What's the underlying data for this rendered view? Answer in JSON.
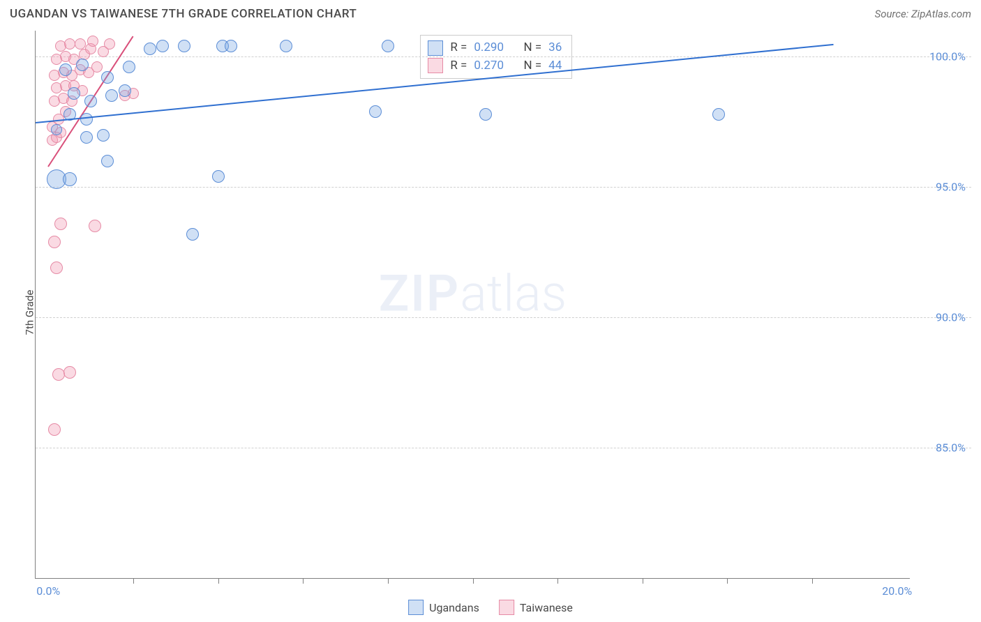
{
  "header": {
    "title": "UGANDAN VS TAIWANESE 7TH GRADE CORRELATION CHART",
    "source": "Source: ZipAtlas.com"
  },
  "axes": {
    "y_label": "7th Grade",
    "y_ticks": [
      {
        "value": 100.0,
        "label": "100.0%"
      },
      {
        "value": 95.0,
        "label": "95.0%"
      },
      {
        "value": 90.0,
        "label": "90.0%"
      },
      {
        "value": 85.0,
        "label": "85.0%"
      }
    ],
    "y_min": 80.0,
    "y_max": 101.0,
    "x_ticks_minor": [
      2,
      4,
      6,
      8,
      10,
      12,
      14,
      16,
      18
    ],
    "x_labels": [
      {
        "value": 0.0,
        "label": "0.0%"
      },
      {
        "value": 20.0,
        "label": "20.0%"
      }
    ],
    "x_min": -0.3,
    "x_max": 20.3,
    "tick_label_color": "#5b8dd6",
    "grid_color": "#d0d0d0",
    "axis_color": "#808080"
  },
  "series": {
    "ugandans": {
      "label": "Ugandans",
      "fill": "rgba(120,165,225,0.35)",
      "stroke": "#5b8dd6",
      "trend_color": "#2f6fd0",
      "trend": {
        "x1": -0.3,
        "y1": 97.5,
        "x2": 18.5,
        "y2": 100.5
      },
      "r_value": "0.290",
      "n_value": "36",
      "points": [
        {
          "x": 0.2,
          "y": 95.3,
          "r": 14
        },
        {
          "x": 0.5,
          "y": 95.3,
          "r": 10
        },
        {
          "x": 0.2,
          "y": 97.2,
          "r": 8
        },
        {
          "x": 0.5,
          "y": 97.8,
          "r": 9
        },
        {
          "x": 0.9,
          "y": 96.9,
          "r": 9
        },
        {
          "x": 0.9,
          "y": 97.6,
          "r": 9
        },
        {
          "x": 1.3,
          "y": 97.0,
          "r": 9
        },
        {
          "x": 1.4,
          "y": 96.0,
          "r": 9
        },
        {
          "x": 0.6,
          "y": 98.6,
          "r": 9
        },
        {
          "x": 1.0,
          "y": 98.3,
          "r": 9
        },
        {
          "x": 1.5,
          "y": 98.5,
          "r": 9
        },
        {
          "x": 1.8,
          "y": 98.7,
          "r": 9
        },
        {
          "x": 0.4,
          "y": 99.5,
          "r": 9
        },
        {
          "x": 0.8,
          "y": 99.7,
          "r": 9
        },
        {
          "x": 1.4,
          "y": 99.2,
          "r": 9
        },
        {
          "x": 1.9,
          "y": 99.6,
          "r": 9
        },
        {
          "x": 2.4,
          "y": 100.3,
          "r": 9
        },
        {
          "x": 2.7,
          "y": 100.4,
          "r": 9
        },
        {
          "x": 3.2,
          "y": 100.4,
          "r": 9
        },
        {
          "x": 3.4,
          "y": 93.2,
          "r": 9
        },
        {
          "x": 4.0,
          "y": 95.4,
          "r": 9
        },
        {
          "x": 4.1,
          "y": 100.4,
          "r": 9
        },
        {
          "x": 4.3,
          "y": 100.4,
          "r": 9
        },
        {
          "x": 5.6,
          "y": 100.4,
          "r": 9
        },
        {
          "x": 7.7,
          "y": 97.9,
          "r": 9
        },
        {
          "x": 8.0,
          "y": 100.4,
          "r": 9
        },
        {
          "x": 10.3,
          "y": 97.8,
          "r": 9
        },
        {
          "x": 15.8,
          "y": 97.8,
          "r": 9
        }
      ]
    },
    "taiwanese": {
      "label": "Taiwanese",
      "fill": "rgba(240,150,175,0.35)",
      "stroke": "#e68aa5",
      "trend_color": "#d94f7a",
      "trend": {
        "x1": 0.0,
        "y1": 95.8,
        "x2": 2.0,
        "y2": 100.8
      },
      "r_value": "0.270",
      "n_value": "44",
      "points": [
        {
          "x": 0.15,
          "y": 85.7,
          "r": 9
        },
        {
          "x": 0.25,
          "y": 87.8,
          "r": 9
        },
        {
          "x": 0.5,
          "y": 87.9,
          "r": 9
        },
        {
          "x": 0.2,
          "y": 91.9,
          "r": 9
        },
        {
          "x": 0.15,
          "y": 92.9,
          "r": 9
        },
        {
          "x": 0.3,
          "y": 93.6,
          "r": 9
        },
        {
          "x": 1.1,
          "y": 93.5,
          "r": 9
        },
        {
          "x": 0.1,
          "y": 96.8,
          "r": 8
        },
        {
          "x": 0.2,
          "y": 96.9,
          "r": 8
        },
        {
          "x": 0.1,
          "y": 97.3,
          "r": 8
        },
        {
          "x": 0.3,
          "y": 97.1,
          "r": 8
        },
        {
          "x": 0.25,
          "y": 97.6,
          "r": 8
        },
        {
          "x": 0.4,
          "y": 97.9,
          "r": 8
        },
        {
          "x": 0.15,
          "y": 98.3,
          "r": 8
        },
        {
          "x": 0.35,
          "y": 98.4,
          "r": 8
        },
        {
          "x": 0.55,
          "y": 98.3,
          "r": 8
        },
        {
          "x": 0.2,
          "y": 98.8,
          "r": 8
        },
        {
          "x": 0.4,
          "y": 98.9,
          "r": 8
        },
        {
          "x": 0.6,
          "y": 98.9,
          "r": 8
        },
        {
          "x": 0.8,
          "y": 98.7,
          "r": 8
        },
        {
          "x": 0.15,
          "y": 99.3,
          "r": 8
        },
        {
          "x": 0.35,
          "y": 99.4,
          "r": 8
        },
        {
          "x": 0.55,
          "y": 99.3,
          "r": 8
        },
        {
          "x": 0.75,
          "y": 99.5,
          "r": 8
        },
        {
          "x": 0.95,
          "y": 99.4,
          "r": 8
        },
        {
          "x": 1.15,
          "y": 99.6,
          "r": 8
        },
        {
          "x": 0.2,
          "y": 99.9,
          "r": 8
        },
        {
          "x": 0.4,
          "y": 100.0,
          "r": 8
        },
        {
          "x": 0.6,
          "y": 99.9,
          "r": 8
        },
        {
          "x": 0.85,
          "y": 100.1,
          "r": 8
        },
        {
          "x": 1.0,
          "y": 100.3,
          "r": 8
        },
        {
          "x": 1.3,
          "y": 100.2,
          "r": 8
        },
        {
          "x": 0.3,
          "y": 100.4,
          "r": 8
        },
        {
          "x": 0.5,
          "y": 100.5,
          "r": 8
        },
        {
          "x": 0.75,
          "y": 100.5,
          "r": 8
        },
        {
          "x": 1.05,
          "y": 100.6,
          "r": 8
        },
        {
          "x": 1.45,
          "y": 100.5,
          "r": 8
        },
        {
          "x": 1.8,
          "y": 98.5,
          "r": 8
        },
        {
          "x": 2.0,
          "y": 98.6,
          "r": 8
        }
      ]
    }
  },
  "legend_box": {
    "r_label": "R =",
    "n_label": "N ="
  },
  "watermark": {
    "bold": "ZIP",
    "rest": "atlas"
  }
}
